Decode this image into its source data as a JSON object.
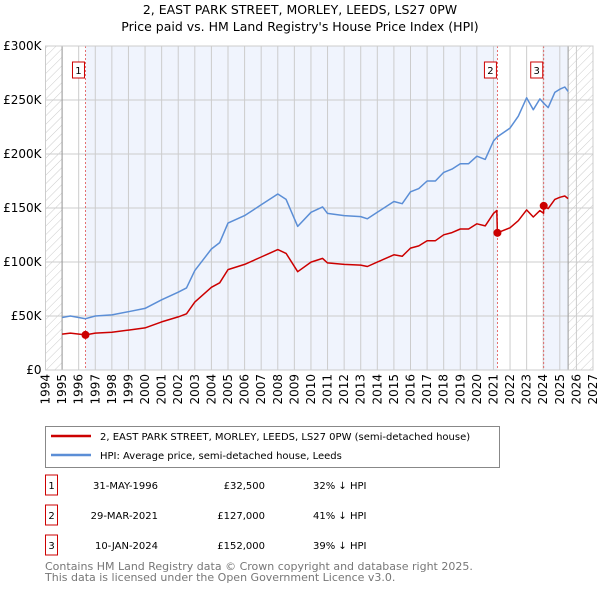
{
  "chart_data": {
    "type": "line",
    "title": "2, EAST PARK STREET, MORLEY, LEEDS, LS27 0PW",
    "subtitle": "Price paid vs. HM Land Registry's House Price Index (HPI)",
    "xlim": [
      1994,
      2027
    ],
    "ylim": [
      0,
      300000
    ],
    "x_ticks": [
      "1994",
      "1995",
      "1996",
      "1997",
      "1998",
      "1999",
      "2000",
      "2001",
      "2002",
      "2003",
      "2004",
      "2005",
      "2006",
      "2007",
      "2008",
      "2009",
      "2010",
      "2011",
      "2012",
      "2013",
      "2014",
      "2015",
      "2016",
      "2017",
      "2018",
      "2019",
      "2020",
      "2021",
      "2022",
      "2023",
      "2024",
      "2025",
      "2026",
      "2027"
    ],
    "y_ticks": [
      {
        "value": 0,
        "label": "£0"
      },
      {
        "value": 50000,
        "label": "£50K"
      },
      {
        "value": 100000,
        "label": "£100K"
      },
      {
        "value": 150000,
        "label": "£150K"
      },
      {
        "value": 200000,
        "label": "£200K"
      },
      {
        "value": 250000,
        "label": "£250K"
      },
      {
        "value": 300000,
        "label": "£300K"
      }
    ],
    "data_range": [
      1995,
      2025.5
    ],
    "series": [
      {
        "name": "2, EAST PARK STREET, MORLEY, LEEDS, LS27 0PW (semi-detached house)",
        "color": "#cc0000",
        "x": [
          1995,
          1995.5,
          1996.41,
          1997,
          1998,
          1999,
          2000,
          2001,
          2002,
          2002.5,
          2003,
          2004,
          2004.5,
          2005,
          2006,
          2007,
          2008,
          2008.5,
          2009.2,
          2010,
          2010.7,
          2011,
          2012,
          2013,
          2013.4,
          2014,
          2015,
          2015.5,
          2016,
          2016.5,
          2017,
          2017.5,
          2018,
          2018.5,
          2019,
          2019.5,
          2020,
          2020.5,
          2021,
          2021.2,
          2021.24,
          2022,
          2022.5,
          2023,
          2023.4,
          2023.8,
          2024.02,
          2024.03,
          2024.3,
          2024.7,
          2025,
          2025.3,
          2025.5
        ],
        "values": [
          33200,
          34200,
          32500,
          34200,
          34900,
          36900,
          39000,
          44500,
          49200,
          52000,
          62900,
          76600,
          80700,
          93000,
          97800,
          104600,
          111500,
          108000,
          91000,
          99900,
          103300,
          99200,
          97800,
          97100,
          95800,
          99900,
          106700,
          105300,
          112900,
          114900,
          119700,
          119700,
          125200,
          127200,
          130600,
          130600,
          135400,
          133400,
          145000,
          147700,
          127000,
          131700,
          138200,
          148200,
          141700,
          147600,
          145200,
          152000,
          149400,
          158000,
          159900,
          161100,
          158700
        ]
      },
      {
        "name": "HPI: Average price, semi-detached house, Leeds",
        "color": "#5b8ed6",
        "x": [
          1995,
          1995.5,
          1996.41,
          1997,
          1998,
          1999,
          2000,
          2001,
          2002,
          2002.5,
          2003,
          2004,
          2004.5,
          2005,
          2006,
          2007,
          2008,
          2008.5,
          2009.2,
          2010,
          2010.7,
          2011,
          2012,
          2013,
          2013.4,
          2014,
          2015,
          2015.5,
          2016,
          2016.5,
          2017,
          2017.5,
          2018,
          2018.5,
          2019,
          2019.5,
          2020,
          2020.5,
          2021,
          2021.24,
          2022,
          2022.5,
          2023,
          2023.4,
          2023.8,
          2024.03,
          2024.3,
          2024.7,
          2025,
          2025.3,
          2025.5
        ],
        "values": [
          48600,
          50000,
          47500,
          50000,
          51000,
          54000,
          57000,
          65000,
          72000,
          76000,
          92000,
          112000,
          118000,
          136000,
          143000,
          153000,
          163000,
          158000,
          133000,
          146000,
          151000,
          145000,
          143000,
          142000,
          140000,
          146000,
          156000,
          154000,
          165000,
          168000,
          175000,
          175000,
          183000,
          186000,
          191000,
          191000,
          198000,
          195000,
          212000,
          216000,
          224000,
          235000,
          252000,
          241000,
          251000,
          247000,
          243000,
          257000,
          260000,
          262000,
          258000
        ]
      }
    ],
    "sales": [
      {
        "label": "1",
        "x": 1996.41,
        "date": "31-MAY-1996",
        "price_value": 32500,
        "price": "£32,500",
        "hpi_diff": "32% ↓ HPI"
      },
      {
        "label": "2",
        "x": 2021.24,
        "date": "29-MAR-2021",
        "price_value": 127000,
        "price": "£127,000",
        "hpi_diff": "41% ↓ HPI"
      },
      {
        "label": "3",
        "x": 2024.03,
        "date": "10-JAN-2024",
        "price_value": 152000,
        "price": "£152,000",
        "hpi_diff": "39% ↓ HPI"
      }
    ],
    "legend_position": "below"
  },
  "footer": {
    "line1": "Contains HM Land Registry data © Crown copyright and database right 2025.",
    "line2": "This data is licensed under the Open Government Licence v3.0."
  }
}
